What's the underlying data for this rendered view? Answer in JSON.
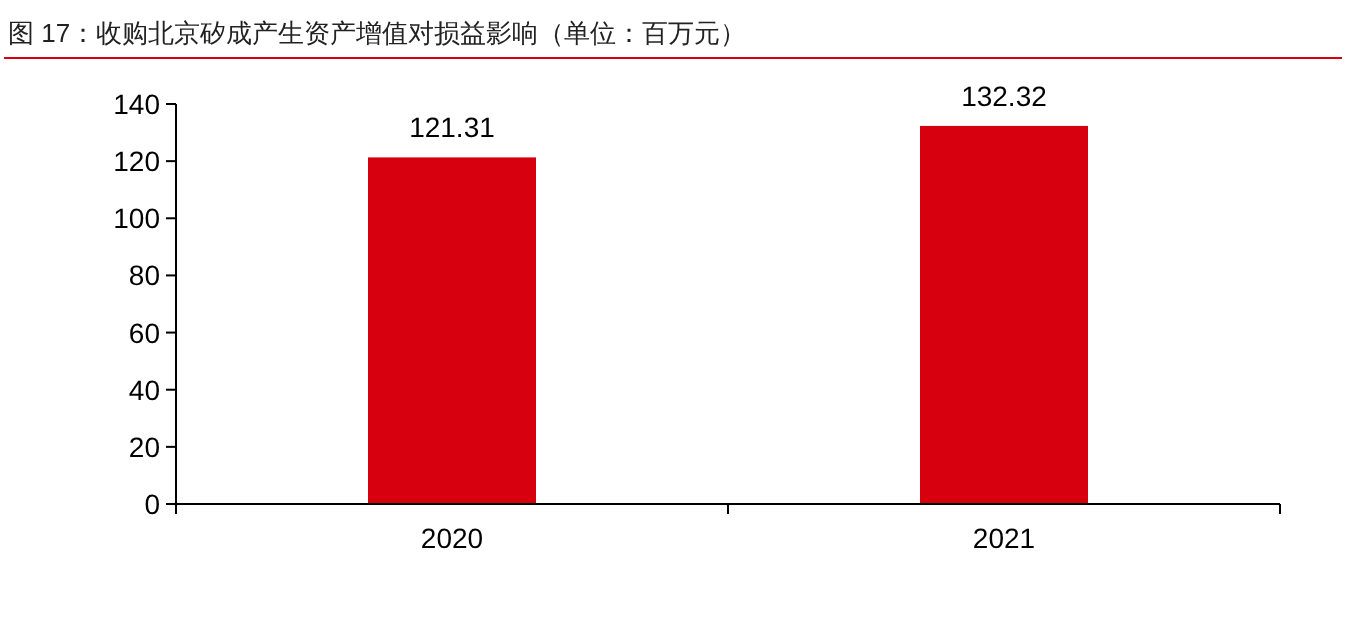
{
  "chart_data": {
    "type": "bar",
    "title": "图 17：收购北京矽成产生资产增值对损益影响（单位：百万元）",
    "categories": [
      "2020",
      "2021"
    ],
    "series": [
      {
        "color": "#d7000f",
        "values": [
          121.31,
          132.32
        ]
      }
    ],
    "ylim": [
      0,
      140
    ],
    "yticks": [
      0,
      20,
      40,
      60,
      80,
      100,
      120,
      140
    ],
    "data_labels": true
  }
}
